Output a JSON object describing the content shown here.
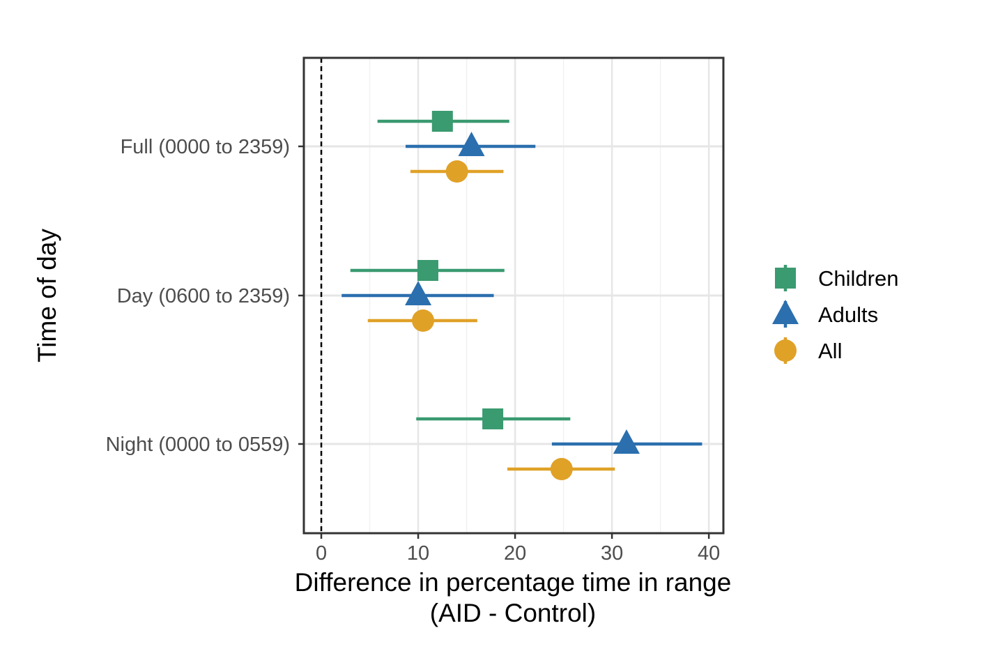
{
  "chart_data": {
    "type": "forest",
    "xlabel_line1": "Difference in percentage time in range",
    "xlabel_line2": "(AID - Control)",
    "ylabel": "Time of day",
    "xlim": [
      -1.8,
      41.5
    ],
    "x_ticks": [
      0,
      10,
      20,
      30,
      40
    ],
    "x_tick_labels": [
      "0",
      "10",
      "20",
      "30",
      "40"
    ],
    "reference_line_x": 0,
    "grid": true,
    "legend_position": "right",
    "categories": [
      "Full (0000 to 2359)",
      "Day (0600 to 2359)",
      "Night (0000 to 0559)"
    ],
    "series": [
      {
        "name": "Children",
        "color": "#3a9a70",
        "marker": "square",
        "estimate": [
          12.5,
          11.0,
          17.7
        ],
        "lower": [
          5.8,
          3.0,
          9.8
        ],
        "upper": [
          19.4,
          18.9,
          25.7
        ]
      },
      {
        "name": "Adults",
        "color": "#2b6fae",
        "marker": "triangle",
        "estimate": [
          15.5,
          10.0,
          31.5
        ],
        "lower": [
          8.7,
          2.1,
          23.8
        ],
        "upper": [
          22.1,
          17.8,
          39.3
        ]
      },
      {
        "name": "All",
        "color": "#e0a127",
        "marker": "circle",
        "estimate": [
          14.0,
          10.5,
          24.8
        ],
        "lower": [
          9.2,
          4.8,
          19.2
        ],
        "upper": [
          18.8,
          16.1,
          30.3
        ]
      }
    ]
  }
}
